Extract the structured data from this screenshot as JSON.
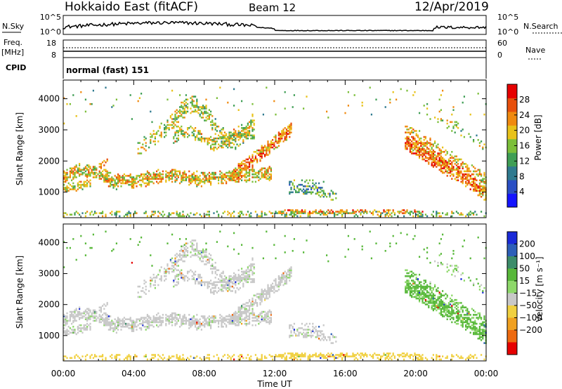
{
  "header": {
    "station": "Hokkaido East (fitACF)",
    "beam": "Beam 12",
    "date": "12/Apr/2019"
  },
  "panels": {
    "nsky": {
      "label": "N.Sky",
      "left_ticks": [
        "10^5",
        "10^0"
      ],
      "right_ticks": [
        "10^5",
        "10^0"
      ],
      "right_label": "N.Search"
    },
    "freq": {
      "label_line1": "Freq.",
      "label_line2": "[MHz]",
      "left_ticks": [
        "18",
        "8"
      ],
      "right_ticks": [
        "60",
        "0"
      ],
      "right_label": "Nave"
    },
    "cpid": {
      "label": "CPID",
      "text": "normal (fast) 151"
    }
  },
  "chart_data": [
    {
      "type": "heatmap",
      "quantity": "Power",
      "ylabel": "Slant Range [km]",
      "xlabel": "Time UT",
      "x_ticks": [
        "00:00",
        "04:00",
        "08:00",
        "12:00",
        "16:00",
        "20:00",
        "00:00"
      ],
      "y_ticks": [
        1000,
        2000,
        3000,
        4000
      ],
      "ylim": [
        180,
        4600
      ],
      "xlim_hours": [
        0,
        24
      ],
      "colorbar": {
        "label": "Power [dB]",
        "ticks": [
          28,
          24,
          20,
          16,
          12,
          8,
          4
        ],
        "range": [
          0,
          32
        ],
        "colors": [
          "#1414ff",
          "#2a4fc4",
          "#2f7a8f",
          "#3f9e55",
          "#7cbf3a",
          "#e8c21a",
          "#f08a10",
          "#e8500c",
          "#e60000"
        ]
      },
      "features": [
        {
          "region": "main band",
          "hours": [
            0,
            11.5
          ],
          "range_km": [
            1200,
            1700
          ],
          "power_db": 20
        },
        {
          "region": "rising streak",
          "hours": [
            9.5,
            12.8
          ],
          "range_km": [
            1400,
            3000
          ],
          "power_db": 24
        },
        {
          "region": "upper cloud",
          "hours": [
            6.5,
            10.5
          ],
          "range_km": [
            2400,
            4000
          ],
          "power_db": 18
        },
        {
          "region": "mid patch",
          "hours": [
            12.8,
            15
          ],
          "range_km": [
            900,
            1400
          ],
          "power_db": 12
        },
        {
          "region": "near range",
          "hours": [
            12,
            20
          ],
          "range_km": [
            200,
            400
          ],
          "power_db": 24
        },
        {
          "region": "late streak",
          "hours": [
            19.3,
            24
          ],
          "range_km": [
            700,
            2800
          ],
          "power_db": 24
        }
      ]
    },
    {
      "type": "heatmap",
      "quantity": "Velocity",
      "ylabel": "Slant Range [km]",
      "xlabel": "Time UT",
      "x_ticks": [
        "00:00",
        "04:00",
        "08:00",
        "12:00",
        "16:00",
        "20:00",
        "00:00"
      ],
      "y_ticks": [
        1000,
        2000,
        3000,
        4000
      ],
      "ylim": [
        180,
        4600
      ],
      "xlim_hours": [
        0,
        24
      ],
      "colorbar": {
        "label": "Velocity [m s⁻¹]",
        "ticks": [
          "200",
          "100",
          "50",
          "15",
          "−15",
          "−50",
          "−100",
          "−200"
        ],
        "colors": [
          "#1a2ad8",
          "#2d5fb8",
          "#3c8c6a",
          "#58b83a",
          "#8ed86a",
          "#c8c8c8",
          "#f0d040",
          "#f0a020",
          "#ee6a10",
          "#e60000"
        ]
      },
      "features": [
        {
          "region": "main band",
          "hours": [
            0,
            11.5
          ],
          "range_km": [
            1200,
            1700
          ],
          "velocity": 0
        },
        {
          "region": "rising streak",
          "hours": [
            9.5,
            12.8
          ],
          "range_km": [
            1400,
            3000
          ],
          "velocity": 0
        },
        {
          "region": "upper cloud",
          "hours": [
            6.5,
            10.5
          ],
          "range_km": [
            2400,
            4000
          ],
          "velocity": 0
        },
        {
          "region": "mid patch",
          "hours": [
            12.8,
            15
          ],
          "range_km": [
            900,
            1400
          ],
          "velocity": 0
        },
        {
          "region": "near range",
          "hours": [
            12,
            20
          ],
          "range_km": [
            200,
            400
          ],
          "velocity": -30
        },
        {
          "region": "late streak",
          "hours": [
            19.3,
            24
          ],
          "range_km": [
            700,
            2800
          ],
          "velocity": 20
        }
      ]
    }
  ]
}
